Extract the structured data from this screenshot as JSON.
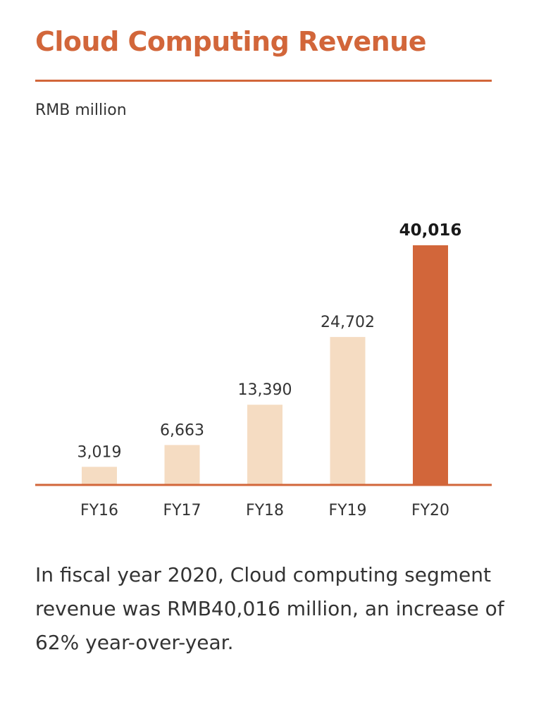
{
  "header": {
    "title": "Cloud Computing Revenue",
    "unit": "RMB million"
  },
  "colors": {
    "accent": "#d2663a",
    "bar": "#f5dcc2",
    "highlight_bar": "#d2663a",
    "text": "#333333"
  },
  "chart_data": {
    "type": "bar",
    "title": "Cloud Computing Revenue",
    "ylabel": "RMB million",
    "xlabel": "",
    "categories": [
      "FY16",
      "FY17",
      "FY18",
      "FY19",
      "FY20"
    ],
    "values": [
      3019,
      6663,
      13390,
      24702,
      40016
    ],
    "value_labels": [
      "3,019",
      "6,663",
      "13,390",
      "24,702",
      "40,016"
    ],
    "highlight_index": 4,
    "ylim": [
      0,
      40016
    ],
    "grid": false,
    "legend": "none"
  },
  "summary": {
    "text": "In fiscal year 2020, Cloud computing segment revenue was RMB40,016 million, an increase of 62% year-over-year."
  }
}
